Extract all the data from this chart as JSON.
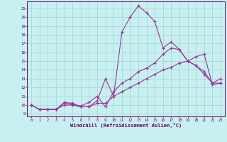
{
  "xlabel": "Windchill (Refroidissement éolien,°C)",
  "bg_color": "#c8f0f0",
  "grid_color": "#a8d8d8",
  "line_color": "#993399",
  "xlim": [
    -0.5,
    23.5
  ],
  "ylim": [
    8.7,
    21.8
  ],
  "yticks": [
    9,
    10,
    11,
    12,
    13,
    14,
    15,
    16,
    17,
    18,
    19,
    20,
    21
  ],
  "xticks": [
    0,
    1,
    2,
    3,
    4,
    5,
    6,
    7,
    8,
    9,
    10,
    11,
    12,
    13,
    14,
    15,
    16,
    17,
    18,
    19,
    20,
    21,
    22,
    23
  ],
  "line1_x": [
    0,
    1,
    2,
    3,
    4,
    5,
    6,
    7,
    8,
    9,
    10,
    11,
    12,
    13,
    14,
    15,
    16,
    17,
    18,
    19,
    20,
    21,
    22,
    23
  ],
  "line1_y": [
    10.0,
    9.5,
    9.5,
    9.5,
    10.3,
    10.2,
    9.8,
    9.8,
    10.5,
    13.0,
    11.0,
    18.3,
    20.0,
    21.3,
    20.5,
    19.5,
    16.5,
    17.2,
    16.3,
    15.0,
    14.5,
    13.8,
    12.5,
    13.0
  ],
  "line2_x": [
    0,
    1,
    2,
    3,
    4,
    5,
    6,
    7,
    8,
    9,
    10,
    11,
    12,
    13,
    14,
    15,
    16,
    17,
    18,
    19,
    20,
    21,
    22,
    23
  ],
  "line2_y": [
    10.0,
    9.5,
    9.5,
    9.5,
    10.2,
    10.1,
    9.9,
    10.3,
    11.0,
    9.8,
    11.5,
    12.5,
    13.0,
    13.8,
    14.2,
    14.8,
    15.8,
    16.5,
    16.3,
    15.0,
    14.5,
    13.5,
    12.5,
    12.5
  ],
  "line3_x": [
    0,
    1,
    2,
    3,
    4,
    5,
    6,
    7,
    8,
    9,
    10,
    11,
    12,
    13,
    14,
    15,
    16,
    17,
    18,
    19,
    20,
    21,
    22,
    23
  ],
  "line3_y": [
    10.0,
    9.5,
    9.5,
    9.5,
    10.0,
    10.0,
    9.8,
    9.8,
    10.2,
    10.2,
    11.0,
    11.5,
    12.0,
    12.5,
    13.0,
    13.5,
    14.0,
    14.3,
    14.8,
    15.0,
    15.5,
    15.8,
    12.3,
    12.5
  ]
}
